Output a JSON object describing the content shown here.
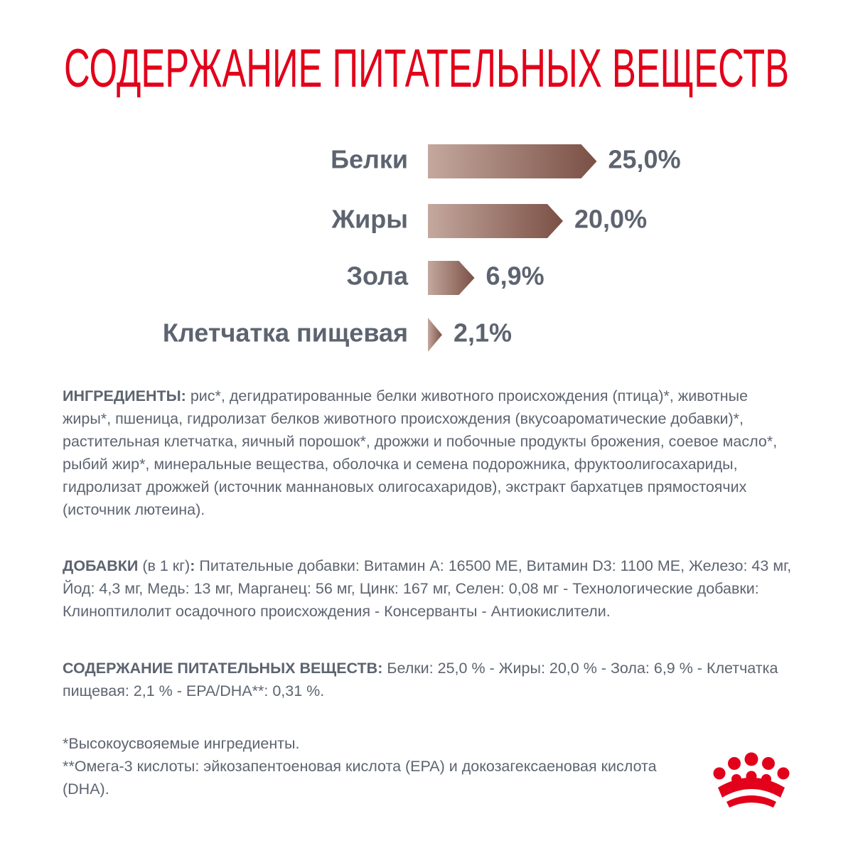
{
  "chart_data": {
    "type": "bar",
    "orientation": "horizontal",
    "title": "СОДЕРЖАНИЕ ПИТАТЕЛЬНЫХ ВЕЩЕСТВ",
    "categories": [
      "Белки",
      "Жиры",
      "Зола",
      "Клетчатка пищевая"
    ],
    "values": [
      25.0,
      20.0,
      6.9,
      2.1
    ],
    "value_labels": [
      "25,0%",
      "20,0%",
      "6,9%",
      "2,1%"
    ],
    "color": "#7b5045"
  },
  "ingredients": {
    "label": "ИНГРЕДИЕНТЫ:",
    "text": "рис*, дегидратированные белки животного происхождения (птица)*, животные жиры*, пшеница, гидролизат белков животного происхождения (вкусоароматические добавки)*, растительная клетчатка, яичный порошок*, дрожжи и побочные продукты брожения, соевое масло*, рыбий жир*, минеральные вещества, оболочка и семена подорожника, фруктоолигосахариды, гидролизат дрожжей (источник маннановых олигосахаридов), экстракт бархатцев прямостоячих (источник лютеина)."
  },
  "additives": {
    "label": "ДОБАВКИ",
    "note": "(в 1 кг)",
    "colon": ":",
    "text": "Питательные добавки: Витамин А: 16500 МЕ, Витамин D3: 1100 МЕ, Железо: 43 мг, Йод: 4,3 мг, Медь: 13 мг, Марганец: 56 мг, Цинк: 167 мг, Селен: 0,08 мг - Технологические добавки: Клиноптилолит осадочного происхождения - Консерванты - Антиокислители."
  },
  "nutrients": {
    "label": "СОДЕРЖАНИЕ ПИТАТЕЛЬНЫХ ВЕЩЕСТВ:",
    "text": "Белки: 25,0 % - Жиры: 20,0 % - Зола: 6,9 % - Клетчатка пищевая: 2,1 % - EPA/DHA**: 0,31 %."
  },
  "footnotes": [
    "*Высокоусвояемые ингредиенты.",
    "**Омега-3 кислоты: эйкозапентоеновая кислота (EPA) и докозагексаеновая кислота (DHA)."
  ]
}
